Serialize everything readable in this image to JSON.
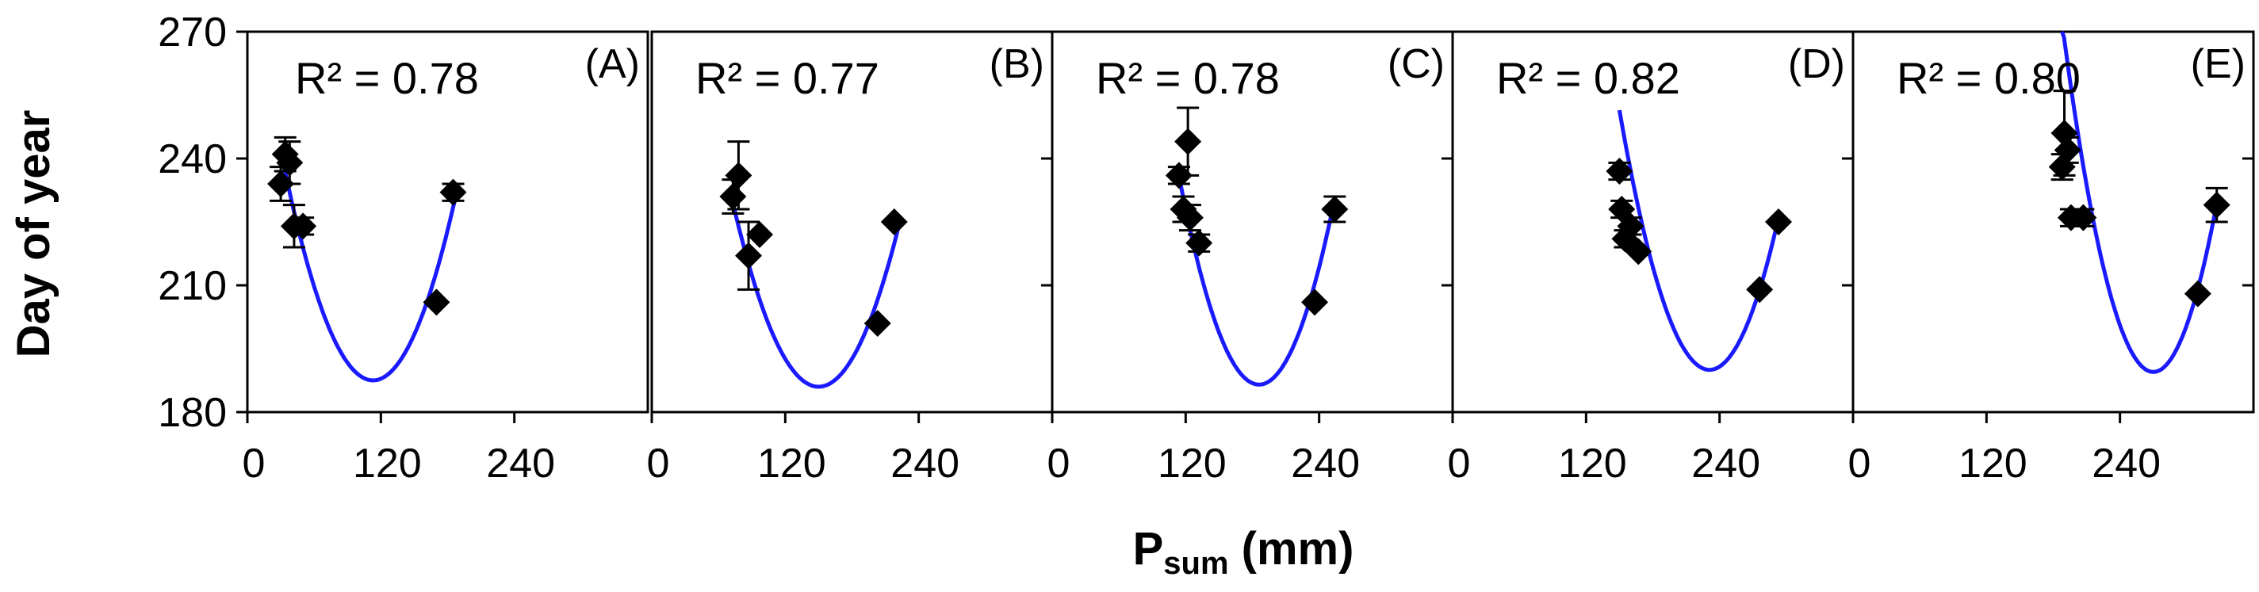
{
  "figure": {
    "ylabel": "Day of year",
    "xlabel_main": "P",
    "xlabel_sub": "sum",
    "xlabel_unit": " (mm)",
    "y_ticks": [
      "180",
      "210",
      "240",
      "270"
    ],
    "x_ticks": [
      "0",
      "120",
      "240"
    ],
    "colors": {
      "fit": "#1a1aff",
      "marker": "#000000",
      "axis": "#000000"
    }
  },
  "chart_data": [
    {
      "type": "scatter",
      "panel": "(A)",
      "r2_label": "R² = 0.78",
      "xlim": [
        0,
        360
      ],
      "ylim": [
        180,
        270
      ],
      "xlabel": "Psum (mm)",
      "ylabel": "Day of year",
      "points": [
        {
          "x": 30,
          "y": 234,
          "err": 4
        },
        {
          "x": 34,
          "y": 241,
          "err": 4
        },
        {
          "x": 38,
          "y": 239,
          "err": 5
        },
        {
          "x": 42,
          "y": 224,
          "err": 5
        },
        {
          "x": 50,
          "y": 224,
          "err": 2
        },
        {
          "x": 170,
          "y": 206,
          "err": 0
        },
        {
          "x": 185,
          "y": 232,
          "err": 2
        }
      ],
      "fit": {
        "x_range": [
          30,
          188
        ],
        "vertex_x": 113,
        "vertex_y": 187.5,
        "y_end": 232
      }
    },
    {
      "type": "scatter",
      "panel": "(B)",
      "r2_label": "R² = 0.77",
      "xlim": [
        0,
        360
      ],
      "ylim": [
        180,
        270
      ],
      "xlabel": "Psum (mm)",
      "ylabel": "Day of year",
      "points": [
        {
          "x": 73,
          "y": 231,
          "err": 4
        },
        {
          "x": 78,
          "y": 236,
          "err": 8
        },
        {
          "x": 87,
          "y": 217,
          "err": 8
        },
        {
          "x": 97,
          "y": 222,
          "err": 0
        },
        {
          "x": 203,
          "y": 201,
          "err": 0
        },
        {
          "x": 218,
          "y": 225,
          "err": 0
        }
      ],
      "fit": {
        "x_range": [
          73,
          222
        ],
        "vertex_x": 150,
        "vertex_y": 186,
        "y_end": 224
      }
    },
    {
      "type": "scatter",
      "panel": "(C)",
      "r2_label": "R² = 0.78",
      "xlim": [
        0,
        360
      ],
      "ylim": [
        180,
        270
      ],
      "xlabel": "Psum (mm)",
      "ylabel": "Day of year",
      "points": [
        {
          "x": 114,
          "y": 236,
          "err": 2
        },
        {
          "x": 118,
          "y": 228,
          "err": 3
        },
        {
          "x": 122,
          "y": 244,
          "err": 8
        },
        {
          "x": 124,
          "y": 226,
          "err": 3
        },
        {
          "x": 132,
          "y": 220,
          "err": 2
        },
        {
          "x": 236,
          "y": 206,
          "err": 0
        },
        {
          "x": 254,
          "y": 228,
          "err": 3
        }
      ],
      "fit": {
        "x_range": [
          114,
          252
        ],
        "vertex_x": 186,
        "vertex_y": 186.5,
        "y_end": 228
      }
    },
    {
      "type": "scatter",
      "panel": "(D)",
      "r2_label": "R² = 0.82",
      "xlim": [
        0,
        360
      ],
      "ylim": [
        180,
        270
      ],
      "xlabel": "Psum (mm)",
      "ylabel": "Day of year",
      "points": [
        {
          "x": 150,
          "y": 237,
          "err": 2
        },
        {
          "x": 152,
          "y": 228,
          "err": 2
        },
        {
          "x": 155,
          "y": 221,
          "err": 2
        },
        {
          "x": 160,
          "y": 224,
          "err": 2
        },
        {
          "x": 167,
          "y": 218,
          "err": 0
        },
        {
          "x": 276,
          "y": 209,
          "err": 0
        },
        {
          "x": 293,
          "y": 225,
          "err": 0
        }
      ],
      "fit": {
        "x_range": [
          150,
          293
        ],
        "vertex_x": 231,
        "vertex_y": 190,
        "y_end": 226
      }
    },
    {
      "type": "scatter",
      "panel": "(E)",
      "r2_label": "R² = 0.80",
      "xlim": [
        0,
        360
      ],
      "ylim": [
        180,
        270
      ],
      "xlabel": "Psum (mm)",
      "ylabel": "Day of year",
      "points": [
        {
          "x": 188,
          "y": 238,
          "err": 3
        },
        {
          "x": 190,
          "y": 246,
          "err": 10
        },
        {
          "x": 193,
          "y": 242,
          "err": 3
        },
        {
          "x": 196,
          "y": 226,
          "err": 2
        },
        {
          "x": 207,
          "y": 226,
          "err": 2
        },
        {
          "x": 310,
          "y": 208,
          "err": 0
        },
        {
          "x": 327,
          "y": 229,
          "err": 4
        }
      ],
      "fit": {
        "x_range": [
          188,
          326
        ],
        "vertex_x": 270,
        "vertex_y": 189.5,
        "y_end": 228
      }
    }
  ]
}
